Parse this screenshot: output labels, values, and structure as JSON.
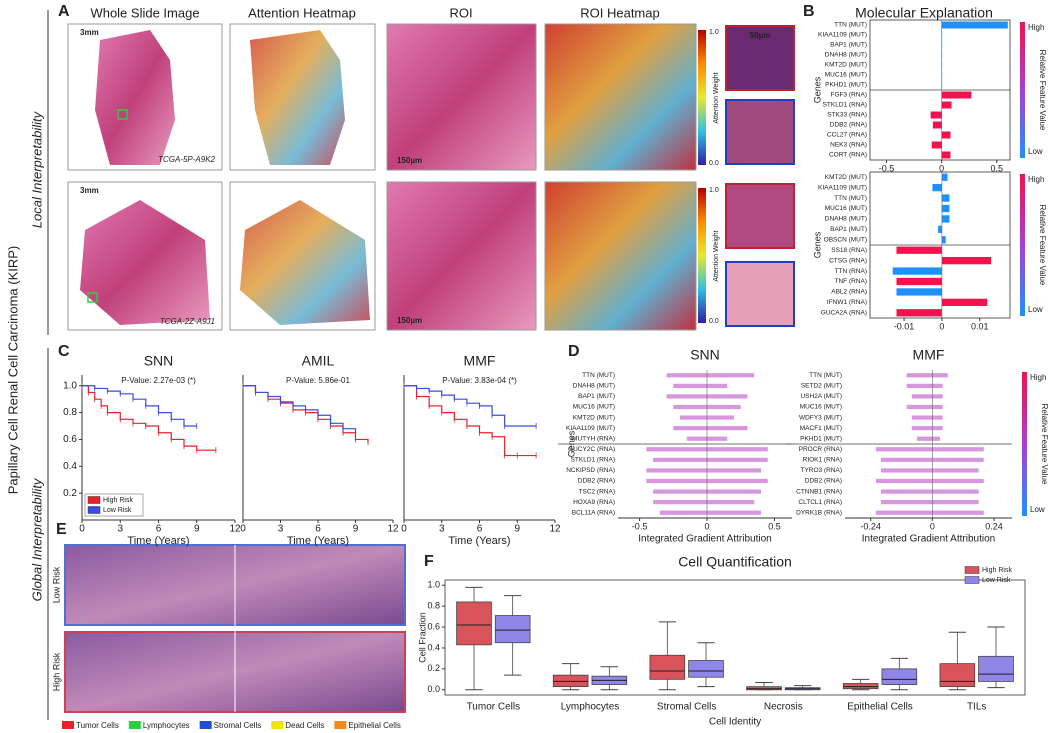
{
  "figure": {
    "side_title": "Papillary Cell Renal Cell Carcinoma (KIRP)",
    "local_label": "Local Interpretability",
    "global_label": "Global Interpretability",
    "panel_labels": [
      "A",
      "B",
      "C",
      "D",
      "E",
      "F"
    ]
  },
  "panel_a": {
    "columns": [
      "Whole Slide Image",
      "Attention Heatmap",
      "ROI",
      "ROI Heatmap"
    ],
    "scale_wsi": "3mm",
    "scale_roi": "150µm",
    "scale_patch": "50µm",
    "slide_ids": [
      "TCGA-5P-A9K2",
      "TCGA-2Z-A9J1"
    ],
    "colorbar_label": "Attention Weight",
    "colorbar_high": "1.0",
    "colorbar_low": "0.0"
  },
  "panel_e": {
    "row_labels": [
      "Low Risk",
      "High Risk"
    ],
    "legend": [
      {
        "name": "Tumor Cells",
        "color": "#e8202a"
      },
      {
        "name": "Lymphocytes",
        "color": "#2ecc40"
      },
      {
        "name": "Stromal Cells",
        "color": "#1f4fd6"
      },
      {
        "name": "Dead Cells",
        "color": "#f5e400"
      },
      {
        "name": "Epithelial Cells",
        "color": "#f08a1c"
      }
    ]
  },
  "chart_data": [
    {
      "type": "barh",
      "title": "Molecular Explanation",
      "ylabel": "Genes",
      "xlim": [
        -0.65,
        0.62
      ],
      "xticks": [
        -0.5,
        0,
        0.5
      ],
      "groups": [
        {
          "categories": [
            "TTN (MUT)",
            "KIAA1109 (MUT)",
            "BAP1 (MUT)",
            "DNAH8 (MUT)",
            "KMT2D (MUT)",
            "MUC16 (MUT)",
            "PKHD1 (MUT)"
          ],
          "values": [
            0.6,
            0.002,
            0.001,
            0.001,
            0.001,
            0.001,
            0.001
          ],
          "colors": [
            "#1e90ff",
            "#1e90ff",
            "#1e90ff",
            "#1e90ff",
            "#1e90ff",
            "#1e90ff",
            "#1e90ff"
          ]
        },
        {
          "categories": [
            "FGF3 (RNA)",
            "STKLD1 (RNA)",
            "STK33 (RNA)",
            "DDB2 (RNA)",
            "CCL27 (RNA)",
            "NEK3 (RNA)",
            "CORT (RNA)"
          ],
          "values": [
            0.27,
            0.09,
            -0.1,
            -0.08,
            0.08,
            -0.09,
            0.08
          ],
          "colors": [
            "#f0134d",
            "#f0134d",
            "#f0134d",
            "#f0134d",
            "#f0134d",
            "#f0134d",
            "#f0134d"
          ]
        }
      ],
      "colorbar": {
        "high": "High",
        "low": "Low",
        "label": "Relative Feature Value"
      }
    },
    {
      "type": "barh",
      "ylabel": "Genes",
      "xlim": [
        -0.019,
        0.018
      ],
      "xticks": [
        -0.01,
        0,
        0.01
      ],
      "groups": [
        {
          "categories": [
            "KMT2D (MUT)",
            "KIAA1109 (MUT)",
            "TTN (MUT)",
            "MUC16 (MUT)",
            "DNAH8 (MUT)",
            "BAP1 (MUT)",
            "OBSCN (MUT)"
          ],
          "values": [
            0.0015,
            -0.0025,
            0.002,
            0.002,
            0.002,
            -0.001,
            0.001
          ],
          "colors": [
            "#1e90ff",
            "#1e90ff",
            "#1e90ff",
            "#1e90ff",
            "#1e90ff",
            "#1e90ff",
            "#1e90ff"
          ]
        },
        {
          "categories": [
            "SS18 (RNA)",
            "CTSG (RNA)",
            "TTN (RNA)",
            "TNF (RNA)",
            "ABL2 (RNA)",
            "IFNW1 (RNA)",
            "GUCA2A (RNA)"
          ],
          "values": [
            -0.012,
            0.013,
            -0.013,
            -0.012,
            -0.012,
            0.012,
            -0.012
          ],
          "colors": [
            "#f0134d",
            "#f0134d",
            "#1e90ff",
            "#f0134d",
            "#1e90ff",
            "#f0134d",
            "#f0134d"
          ]
        }
      ],
      "colorbar": {
        "high": "High",
        "low": "Low",
        "label": "Relative Feature Value"
      }
    },
    {
      "type": "km",
      "title": "SNN",
      "annotation": "P-Value: 2.27e-03 (*)",
      "xlabel": "Time (Years)",
      "xlim": [
        0,
        12
      ],
      "ylim": [
        0,
        1.08
      ],
      "xticks": [
        0,
        3,
        6,
        9,
        12
      ],
      "yticks": [
        0.2,
        0.4,
        0.6,
        0.8,
        {
          "value": 1,
          "label": "1.0"
        }
      ],
      "legend": "lower left",
      "series": [
        {
          "name": "High Risk",
          "color": "#e8202a",
          "x": [
            0,
            0.5,
            1,
            1.5,
            2,
            3,
            4,
            5,
            6,
            7,
            8,
            9,
            10.5
          ],
          "values": [
            1,
            0.95,
            0.9,
            0.85,
            0.8,
            0.75,
            0.72,
            0.7,
            0.65,
            0.6,
            0.55,
            0.52,
            0.52
          ]
        },
        {
          "name": "Low Risk",
          "color": "#3a4de0",
          "x": [
            0,
            1,
            2,
            3,
            4,
            5,
            6,
            7,
            8,
            9
          ],
          "values": [
            1,
            0.98,
            0.96,
            0.94,
            0.9,
            0.85,
            0.8,
            0.75,
            0.7,
            0.7
          ]
        }
      ]
    },
    {
      "type": "km",
      "title": "AMIL",
      "annotation": "P-Value: 5.86e-01",
      "xlabel": "Time (Years)",
      "xlim": [
        0,
        12
      ],
      "ylim": [
        0,
        1.08
      ],
      "xticks": [
        0,
        3,
        6,
        9,
        12
      ],
      "series": [
        {
          "color": "#e8202a",
          "x": [
            0,
            1,
            2,
            3,
            4,
            5,
            6,
            7,
            8,
            9,
            10
          ],
          "values": [
            1,
            0.95,
            0.9,
            0.87,
            0.82,
            0.8,
            0.75,
            0.7,
            0.65,
            0.6,
            0.58
          ]
        },
        {
          "color": "#3a4de0",
          "x": [
            0,
            1,
            2,
            3,
            4,
            5,
            6,
            7,
            8,
            9
          ],
          "values": [
            1,
            0.95,
            0.92,
            0.88,
            0.85,
            0.82,
            0.78,
            0.72,
            0.68,
            0.65
          ]
        }
      ]
    },
    {
      "type": "km",
      "title": "MMF",
      "annotation": "P-Value: 3.83e-04 (*)",
      "xlabel": "Time (Years)",
      "xlim": [
        0,
        12
      ],
      "ylim": [
        0,
        1.08
      ],
      "xticks": [
        0,
        3,
        6,
        9,
        12
      ],
      "series": [
        {
          "color": "#e8202a",
          "x": [
            0,
            1,
            2,
            3,
            4,
            5,
            6,
            7,
            8,
            9,
            10.5
          ],
          "values": [
            1,
            0.92,
            0.85,
            0.8,
            0.75,
            0.7,
            0.65,
            0.62,
            0.48,
            0.48,
            0.48
          ]
        },
        {
          "color": "#3a4de0",
          "x": [
            0,
            1,
            2,
            3,
            4,
            5,
            6,
            7,
            8,
            10.5
          ],
          "values": [
            1,
            0.98,
            0.96,
            0.93,
            0.9,
            0.87,
            0.85,
            0.78,
            0.7,
            0.7
          ]
        }
      ]
    },
    {
      "type": "swarm",
      "title": "SNN",
      "ylabel": "Genes",
      "xlabel": "Integrated Gradient Attribution",
      "xlim": [
        -0.66,
        0.63
      ],
      "xticks": [
        -0.5,
        0,
        0.5
      ],
      "color": "#b83fc4",
      "groups": [
        {
          "categories": [
            "TTN (MUT)",
            "DNAH8 (MUT)",
            "BAP1 (MUT)",
            "MUC16 (MUT)",
            "KMT2D (MUT)",
            "KIAA1109 (MUT)",
            "MUTYH (RNA)"
          ],
          "values": [
            [
              -0.3,
              0.35
            ],
            [
              -0.25,
              0.15
            ],
            [
              -0.3,
              0.3
            ],
            [
              -0.25,
              0.25
            ],
            [
              -0.2,
              0.2
            ],
            [
              -0.25,
              0.3
            ],
            [
              -0.15,
              0.15
            ]
          ]
        },
        {
          "categories": [
            "GUCY2C (RNA)",
            "STKLD1 (RNA)",
            "NCKIPSD (RNA)",
            "DDB2 (RNA)",
            "TSC2 (RNA)",
            "HOXA9 (RNA)",
            "BCL11A (RNA)"
          ],
          "values": [
            [
              -0.45,
              0.45
            ],
            [
              -0.4,
              0.45
            ],
            [
              -0.45,
              0.4
            ],
            [
              -0.45,
              0.45
            ],
            [
              -0.4,
              0.4
            ],
            [
              -0.4,
              0.35
            ],
            [
              -0.35,
              0.4
            ]
          ]
        }
      ]
    },
    {
      "type": "swarm",
      "title": "MMF",
      "xlabel": "Integrated Gradient Attribution",
      "xlim": [
        -0.34,
        0.31
      ],
      "xticks": [
        -0.24,
        0,
        0.24
      ],
      "color": "#b83fc4",
      "groups": [
        {
          "categories": [
            "TTN (MUT)",
            "SETD2 (MUT)",
            "USH2A (MUT)",
            "MUC16 (MUT)",
            "WDFY3 (MUT)",
            "MACF1 (MUT)",
            "PKHD1 (MUT)"
          ],
          "values": [
            [
              -0.1,
              0.06
            ],
            [
              -0.1,
              0.04
            ],
            [
              -0.08,
              0.04
            ],
            [
              -0.1,
              0.04
            ],
            [
              -0.08,
              0.04
            ],
            [
              -0.08,
              0.04
            ],
            [
              -0.06,
              0.03
            ]
          ]
        },
        {
          "categories": [
            "PROCR (RNA)",
            "RIOK1 (RNA)",
            "TYRO3 (RNA)",
            "DDB2 (RNA)",
            "CTNNB1 (RNA)",
            "CLTCL1 (RNA)",
            "DYRK1B (RNA)"
          ],
          "values": [
            [
              -0.22,
              0.2
            ],
            [
              -0.2,
              0.2
            ],
            [
              -0.2,
              0.18
            ],
            [
              -0.22,
              0.2
            ],
            [
              -0.2,
              0.18
            ],
            [
              -0.2,
              0.18
            ],
            [
              -0.22,
              0.2
            ]
          ]
        }
      ],
      "colorbar": {
        "high": "High",
        "low": "Low",
        "label": "Relative Feature Value"
      }
    },
    {
      "type": "box",
      "title": "Cell Quantification",
      "xlabel": "Cell Identity",
      "ylabel": "Cell Fraction",
      "ylim": [
        -0.05,
        1.05
      ],
      "yticks": [
        {
          "value": 0,
          "label": "0.0"
        },
        0.2,
        0.4,
        0.6,
        0.8,
        {
          "value": 1,
          "label": "1.0"
        }
      ],
      "legend": "upper right",
      "categories": [
        "Tumor Cells",
        "Lymphocytes",
        "Stromal Cells",
        "Necrosis",
        "Epithelial Cells",
        "TILs"
      ],
      "series": [
        {
          "name": "High Risk",
          "color": "#d9545a",
          "values": [
            [
              0,
              0.43,
              0.62,
              0.84,
              0.98
            ],
            [
              0,
              0.03,
              0.08,
              0.14,
              0.25
            ],
            [
              0,
              0.1,
              0.18,
              0.33,
              0.65
            ],
            [
              0,
              0,
              0.01,
              0.03,
              0.07
            ],
            [
              0,
              0.01,
              0.03,
              0.06,
              0.1
            ],
            [
              0,
              0.03,
              0.08,
              0.25,
              0.55
            ]
          ]
        },
        {
          "name": "Low Risk",
          "color": "#8f86e8",
          "values": [
            [
              0.14,
              0.45,
              0.57,
              0.71,
              0.9
            ],
            [
              0,
              0.05,
              0.09,
              0.13,
              0.22
            ],
            [
              0.03,
              0.12,
              0.18,
              0.28,
              0.45
            ],
            [
              0,
              0,
              0.01,
              0.02,
              0.04
            ],
            [
              0,
              0.05,
              0.1,
              0.2,
              0.3
            ],
            [
              0.02,
              0.08,
              0.15,
              0.32,
              0.6
            ]
          ]
        }
      ]
    }
  ]
}
